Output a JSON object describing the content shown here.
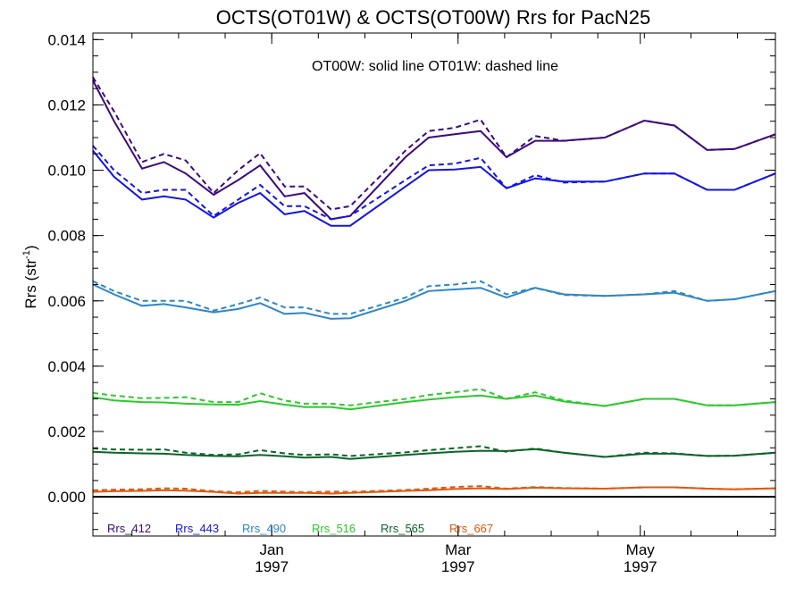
{
  "chart_data": {
    "type": "line",
    "title": "OCTS(OT01W) & OCTS(OT00W)  Rrs for PacN25",
    "ylabel": "Rrs (str",
    "ylabel_superscript": "-1",
    "ylabel_close": ")",
    "xlabel": "",
    "annotation": "OT00W: solid line   OT01W: dashed line",
    "ylim": [
      -0.0012,
      0.0142
    ],
    "xlim": [
      0,
      1
    ],
    "yticks": [
      "0.000",
      "0.002",
      "0.004",
      "0.006",
      "0.008",
      "0.010",
      "0.012",
      "0.014"
    ],
    "xticks": [
      {
        "month": "Jan",
        "year": "1997",
        "x": 0.262
      },
      {
        "month": "Mar",
        "year": "1997",
        "x": 0.535
      },
      {
        "month": "May",
        "year": "1997",
        "x": 0.802
      }
    ],
    "baseline": 0,
    "x": [
      0.0,
      0.031,
      0.072,
      0.104,
      0.136,
      0.177,
      0.213,
      0.245,
      0.281,
      0.31,
      0.349,
      0.377,
      0.458,
      0.492,
      0.53,
      0.568,
      0.606,
      0.648,
      0.69,
      0.75,
      0.808,
      0.852,
      0.9,
      0.94,
      1.0
    ],
    "series": [
      {
        "name": "Rrs_412",
        "color": "#3c0a7c",
        "solid": [
          0.01275,
          0.0115,
          0.01005,
          0.01025,
          0.0099,
          0.00925,
          0.0097,
          0.01015,
          0.0092,
          0.0093,
          0.0085,
          0.0086,
          0.0104,
          0.011,
          0.0111,
          0.0112,
          0.0104,
          0.0109,
          0.0109,
          0.011,
          0.01152,
          0.01137,
          0.01062,
          0.01065,
          0.0111
        ],
        "dashed": [
          0.01285,
          0.0118,
          0.01025,
          0.0105,
          0.0103,
          0.0093,
          0.01,
          0.01052,
          0.0095,
          0.0095,
          0.0088,
          0.0089,
          0.0106,
          0.0112,
          0.0113,
          0.01155,
          0.0104,
          0.01105,
          0.0109,
          0.011,
          0.01152,
          0.01137,
          0.01062,
          0.01065,
          0.0111
        ]
      },
      {
        "name": "Rrs_443",
        "color": "#1414e6",
        "solid": [
          0.0106,
          0.0098,
          0.0091,
          0.0092,
          0.0091,
          0.00855,
          0.009,
          0.0093,
          0.00865,
          0.00875,
          0.0083,
          0.0083,
          0.0095,
          0.01,
          0.01002,
          0.0101,
          0.00945,
          0.00975,
          0.00965,
          0.00965,
          0.0099,
          0.0099,
          0.0094,
          0.0094,
          0.0099
        ],
        "dashed": [
          0.01075,
          0.01,
          0.0093,
          0.0094,
          0.0094,
          0.0086,
          0.0091,
          0.00955,
          0.0089,
          0.0089,
          0.0085,
          0.0086,
          0.0097,
          0.01015,
          0.0102,
          0.01038,
          0.00945,
          0.00985,
          0.00962,
          0.00965,
          0.0099,
          0.0099,
          0.0094,
          0.0094,
          0.0099
        ]
      },
      {
        "name": "Rrs_490",
        "color": "#2e86c8",
        "solid": [
          0.0065,
          0.0062,
          0.00585,
          0.0059,
          0.0058,
          0.00565,
          0.00575,
          0.00593,
          0.0056,
          0.00563,
          0.00545,
          0.00547,
          0.006,
          0.0063,
          0.00635,
          0.0064,
          0.0061,
          0.0064,
          0.0062,
          0.00615,
          0.0062,
          0.00625,
          0.006,
          0.00605,
          0.0063
        ],
        "dashed": [
          0.0066,
          0.0063,
          0.006,
          0.006,
          0.006,
          0.0057,
          0.0059,
          0.0061,
          0.0058,
          0.0058,
          0.0056,
          0.0056,
          0.0061,
          0.00645,
          0.0065,
          0.0066,
          0.0062,
          0.0064,
          0.00618,
          0.00615,
          0.0062,
          0.0063,
          0.006,
          0.00605,
          0.0063
        ]
      },
      {
        "name": "Rrs_516",
        "color": "#2ec82e",
        "solid": [
          0.00305,
          0.00295,
          0.0029,
          0.00289,
          0.00285,
          0.00283,
          0.00282,
          0.00293,
          0.00282,
          0.00275,
          0.00275,
          0.00268,
          0.0029,
          0.00298,
          0.00305,
          0.0031,
          0.003,
          0.0031,
          0.00292,
          0.00278,
          0.003,
          0.003,
          0.0028,
          0.0028,
          0.0029
        ],
        "dashed": [
          0.00318,
          0.0031,
          0.00302,
          0.00303,
          0.00305,
          0.0029,
          0.0029,
          0.00317,
          0.00295,
          0.00285,
          0.00285,
          0.0028,
          0.003,
          0.00312,
          0.0032,
          0.0033,
          0.003,
          0.0032,
          0.00295,
          0.00278,
          0.003,
          0.003,
          0.0028,
          0.0028,
          0.0029
        ]
      },
      {
        "name": "Rrs_565",
        "color": "#0a6428",
        "solid": [
          0.00138,
          0.00135,
          0.00133,
          0.00132,
          0.00128,
          0.00125,
          0.00124,
          0.00128,
          0.00124,
          0.0012,
          0.00122,
          0.00116,
          0.00128,
          0.00133,
          0.00138,
          0.00141,
          0.0014,
          0.00146,
          0.00135,
          0.00122,
          0.00132,
          0.00132,
          0.00125,
          0.00126,
          0.00135
        ],
        "dashed": [
          0.00148,
          0.00145,
          0.00144,
          0.00145,
          0.00135,
          0.00128,
          0.0013,
          0.00143,
          0.00133,
          0.00128,
          0.0013,
          0.00125,
          0.00136,
          0.00143,
          0.00149,
          0.00155,
          0.00138,
          0.00148,
          0.00135,
          0.00122,
          0.00135,
          0.00133,
          0.00125,
          0.00126,
          0.00135
        ]
      },
      {
        "name": "Rrs_667",
        "color": "#dc5a14",
        "solid": [
          0.00015,
          0.00017,
          0.00018,
          0.0002,
          0.00019,
          0.00015,
          0.0001,
          0.00012,
          0.00012,
          0.00012,
          0.0001,
          0.00012,
          0.00018,
          0.0002,
          0.00024,
          0.00026,
          0.00024,
          0.00028,
          0.00026,
          0.00025,
          0.00029,
          0.00029,
          0.00025,
          0.00023,
          0.00026
        ],
        "dashed": [
          0.0002,
          0.00022,
          0.00023,
          0.00026,
          0.00025,
          0.00017,
          0.00014,
          0.00018,
          0.00016,
          0.00014,
          0.00016,
          0.00015,
          0.00021,
          0.00025,
          0.0003,
          0.00033,
          0.00025,
          0.0003,
          0.00027,
          0.00025,
          0.00029,
          0.00029,
          0.00025,
          0.00023,
          0.00026
        ]
      }
    ]
  }
}
